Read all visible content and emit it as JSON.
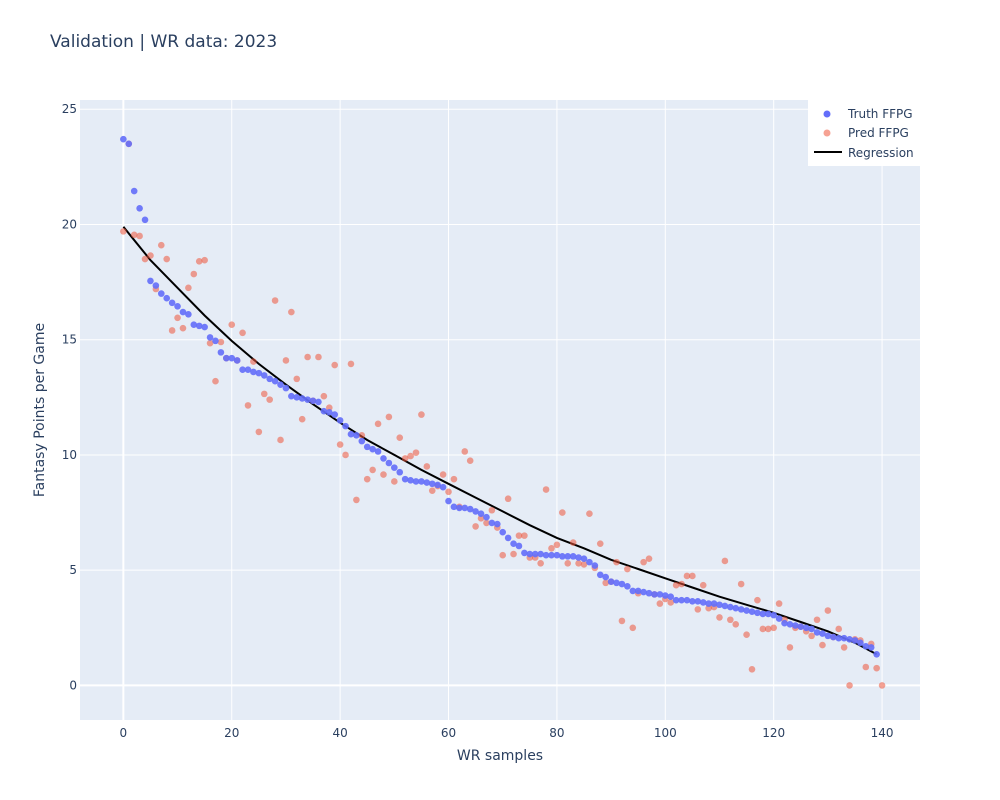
{
  "chart_data": {
    "type": "scatter",
    "title": "Validation | WR data: 2023",
    "xlabel": "WR samples",
    "ylabel": "Fantasy Points per Game",
    "xlim": [
      -8,
      147
    ],
    "ylim": [
      -1.5,
      25.4
    ],
    "x_ticks": [
      0,
      20,
      40,
      60,
      80,
      100,
      120,
      140
    ],
    "y_ticks": [
      0,
      5,
      10,
      15,
      20,
      25
    ],
    "grid": true,
    "legend_position": "top-right",
    "colors": {
      "truth": "#636efa",
      "pred": "#ef553b",
      "regression": "#000000",
      "plot_bg": "#e5ecf6",
      "grid": "#ffffff"
    },
    "series": [
      {
        "name": "Truth FFPG",
        "mode": "markers",
        "values": [
          23.7,
          23.5,
          21.45,
          20.7,
          20.2,
          17.55,
          17.35,
          17.0,
          16.8,
          16.6,
          16.45,
          16.2,
          16.1,
          15.65,
          15.6,
          15.55,
          15.1,
          14.95,
          14.45,
          14.2,
          14.2,
          14.1,
          13.7,
          13.7,
          13.6,
          13.55,
          13.45,
          13.3,
          13.2,
          13.05,
          12.9,
          12.55,
          12.5,
          12.45,
          12.4,
          12.35,
          12.3,
          11.9,
          11.85,
          11.75,
          11.5,
          11.25,
          10.9,
          10.85,
          10.6,
          10.35,
          10.25,
          10.15,
          9.85,
          9.65,
          9.45,
          9.25,
          8.95,
          8.9,
          8.85,
          8.85,
          8.8,
          8.75,
          8.7,
          8.6,
          8.0,
          7.75,
          7.7,
          7.7,
          7.65,
          7.55,
          7.45,
          7.3,
          7.05,
          7.0,
          6.65,
          6.4,
          6.15,
          6.05,
          5.75,
          5.7,
          5.7,
          5.7,
          5.65,
          5.65,
          5.65,
          5.6,
          5.6,
          5.6,
          5.55,
          5.5,
          5.35,
          5.2,
          4.8,
          4.7,
          4.5,
          4.45,
          4.4,
          4.3,
          4.1,
          4.1,
          4.05,
          4.0,
          3.95,
          3.95,
          3.9,
          3.85,
          3.7,
          3.7,
          3.7,
          3.65,
          3.65,
          3.6,
          3.55,
          3.55,
          3.5,
          3.45,
          3.4,
          3.35,
          3.3,
          3.25,
          3.2,
          3.15,
          3.1,
          3.1,
          3.05,
          2.9,
          2.7,
          2.65,
          2.6,
          2.55,
          2.5,
          2.45,
          2.3,
          2.25,
          2.15,
          2.1,
          2.05,
          2.05,
          2.0,
          1.95,
          1.85,
          1.7,
          1.65,
          1.35
        ]
      },
      {
        "name": "Pred FFPG",
        "mode": "markers",
        "values": [
          19.7,
          23.5,
          19.55,
          19.5,
          18.5,
          18.65,
          17.2,
          19.1,
          18.5,
          15.4,
          15.95,
          15.5,
          17.25,
          17.85,
          18.4,
          18.45,
          14.85,
          13.2,
          14.9,
          14.2,
          15.65,
          14.1,
          15.3,
          12.15,
          14.05,
          11.0,
          12.65,
          12.4,
          16.7,
          10.65,
          14.1,
          16.2,
          13.3,
          11.55,
          14.25,
          12.35,
          14.25,
          12.55,
          12.05,
          13.9,
          10.45,
          10.0,
          13.95,
          8.05,
          10.85,
          8.95,
          9.35,
          11.35,
          9.15,
          11.65,
          8.85,
          10.75,
          9.85,
          9.95,
          10.1,
          11.75,
          9.5,
          8.45,
          8.65,
          9.15,
          8.4,
          8.95,
          7.75,
          10.15,
          9.75,
          6.9,
          7.25,
          7.05,
          7.6,
          6.85,
          5.65,
          8.1,
          5.7,
          6.5,
          6.5,
          5.55,
          5.55,
          5.3,
          8.5,
          5.95,
          6.1,
          7.5,
          5.3,
          6.2,
          5.3,
          5.25,
          7.45,
          5.1,
          6.15,
          4.45,
          4.5,
          5.35,
          2.8,
          5.05,
          2.5,
          4.0,
          5.35,
          5.5,
          3.95,
          3.55,
          3.75,
          3.6,
          4.35,
          4.4,
          4.75,
          4.75,
          3.3,
          4.35,
          3.35,
          3.4,
          2.95,
          5.4,
          2.85,
          2.65,
          4.4,
          2.2,
          0.7,
          3.7,
          2.45,
          2.45,
          2.5,
          3.55,
          2.85,
          1.65,
          2.5,
          2.55,
          2.35,
          2.15,
          2.85,
          1.75,
          3.25,
          2.1,
          2.45,
          1.65,
          0.0,
          2.0,
          1.95,
          0.8,
          1.8,
          0.75,
          0.0
        ]
      },
      {
        "name": "Regression",
        "mode": "lines",
        "x": [
          0,
          5,
          10,
          15,
          20,
          25,
          30,
          35,
          40,
          45,
          50,
          55,
          60,
          65,
          70,
          75,
          80,
          85,
          90,
          95,
          100,
          105,
          110,
          115,
          120,
          125,
          130,
          135,
          139
        ],
        "values": [
          19.9,
          18.45,
          17.25,
          16.05,
          14.95,
          13.95,
          13.05,
          12.2,
          11.4,
          10.65,
          10.0,
          9.35,
          8.75,
          8.15,
          7.55,
          6.95,
          6.4,
          5.95,
          5.45,
          5.05,
          4.65,
          4.25,
          3.85,
          3.5,
          3.15,
          2.75,
          2.35,
          1.85,
          1.35
        ]
      }
    ]
  }
}
